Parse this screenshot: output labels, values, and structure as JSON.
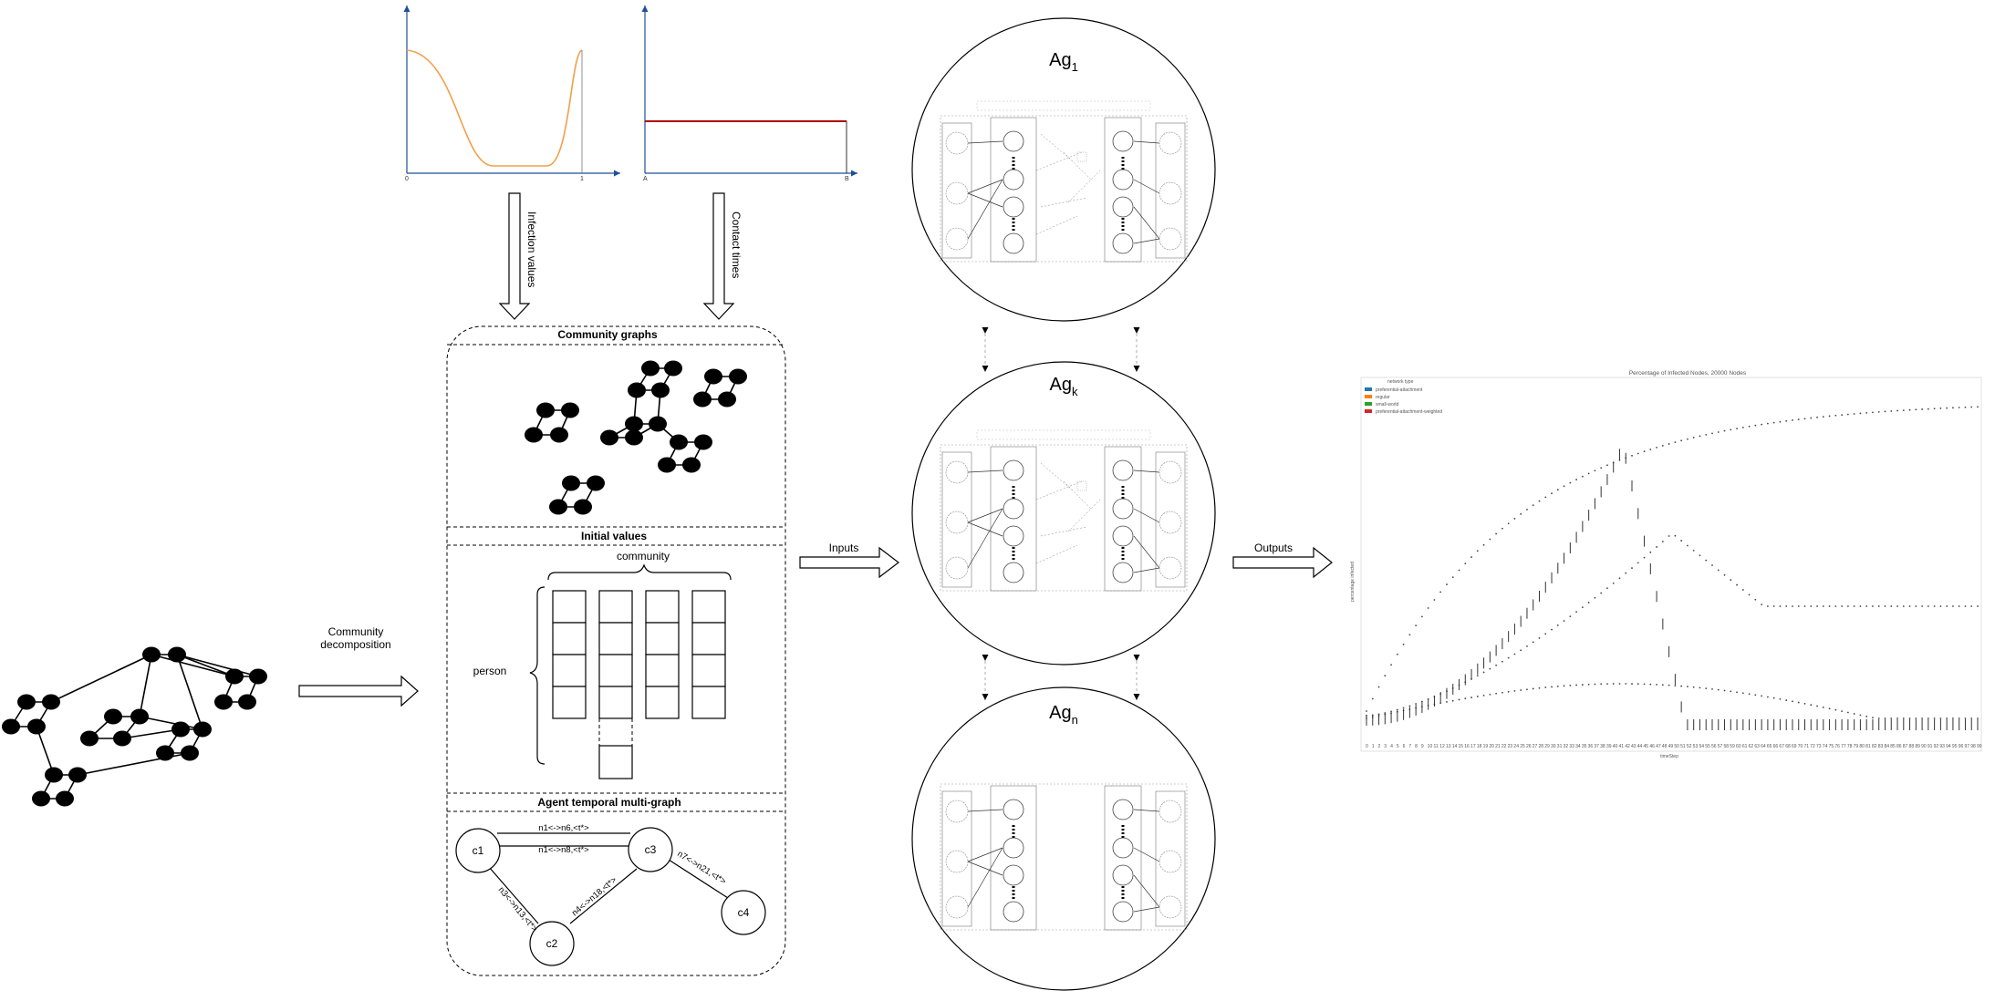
{
  "plots": {
    "left_xticks": [
      "0",
      "1"
    ],
    "right_xticks": [
      "A",
      "B"
    ],
    "curve_color": "#f0a04b",
    "line_color": "#b00000",
    "axis_color": "#1f4e9a"
  },
  "arrows": {
    "infection": "Infection values",
    "contact": "Contact times",
    "community_line1": "Community",
    "community_line2": "decomposition",
    "inputs": "Inputs",
    "outputs": "Outputs"
  },
  "sections": {
    "community_graphs": "Community graphs",
    "initial_values": "Initial values",
    "community_label": "community",
    "person_label": "person",
    "multigraph": "Agent temporal multi-graph"
  },
  "multigraph": {
    "nodes": [
      "c1",
      "c2",
      "c3",
      "c4"
    ],
    "edges": [
      "n1<->n6,<t*>",
      "n1<->n8,<t*>",
      "n3<->n13,<t*>",
      "n4<->n18,<t*>",
      "n7<->n21,<t*>"
    ]
  },
  "agents": {
    "ag1": "Ag",
    "ag1_sub": "1",
    "agk": "Ag",
    "agk_sub": "k",
    "agn": "Ag",
    "agn_sub": "n"
  },
  "chart_data": {
    "type": "scatter",
    "title": "Percentage of Infected Nodes, 20000 Nodes",
    "legend_title": "network type",
    "legend_placement": "top-left",
    "series": [
      {
        "name": "preferential-attachment",
        "color": "#1f77b4"
      },
      {
        "name": "regular",
        "color": "#ff7f0e"
      },
      {
        "name": "small-world",
        "color": "#2ca02c"
      },
      {
        "name": "preferential-attachment-weighted",
        "color": "#d62728"
      }
    ],
    "ylabel": "percentage infected",
    "xlabel": "timeStep"
  }
}
